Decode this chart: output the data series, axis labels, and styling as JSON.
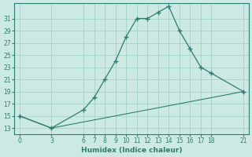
{
  "xlabel": "Humidex (Indice chaleur)",
  "bg_color": "#cce9e4",
  "grid_color": "#aad4cc",
  "line_color": "#2d7d72",
  "line1_x": [
    0,
    3,
    6,
    7,
    8,
    9,
    10,
    11,
    12,
    13,
    14,
    15,
    16,
    17,
    18,
    21
  ],
  "line1_y": [
    15,
    13,
    16,
    18,
    21,
    24,
    28,
    31,
    31,
    32,
    33,
    29,
    26,
    23,
    22,
    19
  ],
  "line2_x": [
    0,
    3,
    21
  ],
  "line2_y": [
    15,
    13,
    19
  ],
  "xlim": [
    -0.5,
    21.5
  ],
  "ylim": [
    12,
    33.5
  ],
  "yticks": [
    13,
    15,
    17,
    19,
    21,
    23,
    25,
    27,
    29,
    31
  ],
  "xticks": [
    0,
    3,
    6,
    7,
    8,
    9,
    10,
    11,
    12,
    13,
    14,
    15,
    16,
    17,
    18,
    21
  ],
  "tick_fontsize": 5.5,
  "xlabel_fontsize": 6.5
}
